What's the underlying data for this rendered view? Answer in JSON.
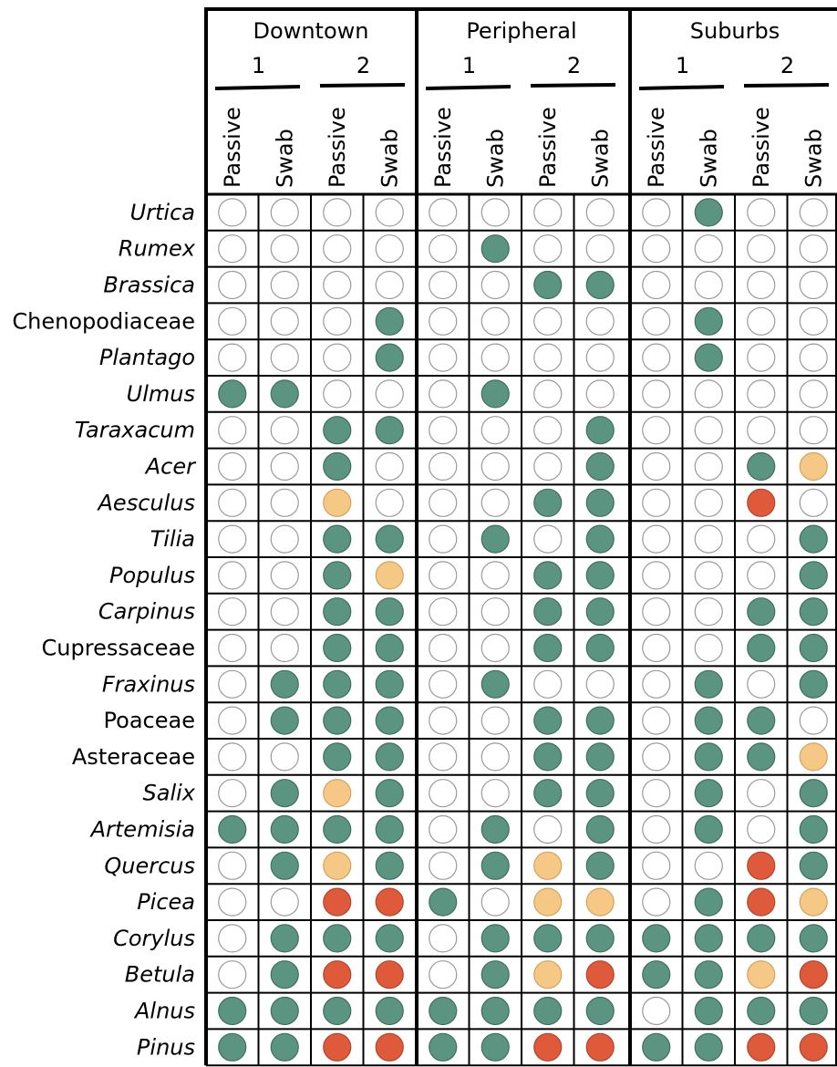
{
  "chart_data": {
    "type": "table",
    "sites": [
      {
        "label": "Downtown",
        "replicates": [
          "1",
          "2"
        ]
      },
      {
        "label": "Peripheral",
        "replicates": [
          "1",
          "2"
        ]
      },
      {
        "label": "Suburbs",
        "replicates": [
          "1",
          "2"
        ]
      }
    ],
    "methods": [
      "Passive",
      "Swab"
    ],
    "colors": {
      "empty": "#ffffff",
      "G": "#5b9481",
      "Y": "#f6c886",
      "R": "#de5a3b",
      "empty_stroke": "#9a9a9a",
      "G_stroke": "#3f6f5f",
      "Y_stroke": "#d4a25b",
      "R_stroke": "#b5432a"
    },
    "rows": [
      {
        "taxon": "Urtica",
        "italic": true,
        "cells": [
          "E",
          "E",
          "E",
          "E",
          "E",
          "E",
          "E",
          "E",
          "E",
          "G",
          "E",
          "E"
        ]
      },
      {
        "taxon": "Rumex",
        "italic": true,
        "cells": [
          "E",
          "E",
          "E",
          "E",
          "E",
          "G",
          "E",
          "E",
          "E",
          "E",
          "E",
          "E"
        ]
      },
      {
        "taxon": "Brassica",
        "italic": true,
        "cells": [
          "E",
          "E",
          "E",
          "E",
          "E",
          "E",
          "G",
          "G",
          "E",
          "E",
          "E",
          "E"
        ]
      },
      {
        "taxon": "Chenopodiaceae",
        "italic": false,
        "cells": [
          "E",
          "E",
          "E",
          "G",
          "E",
          "E",
          "E",
          "E",
          "E",
          "G",
          "E",
          "E"
        ]
      },
      {
        "taxon": "Plantago",
        "italic": true,
        "cells": [
          "E",
          "E",
          "E",
          "G",
          "E",
          "E",
          "E",
          "E",
          "E",
          "G",
          "E",
          "E"
        ]
      },
      {
        "taxon": "Ulmus",
        "italic": true,
        "cells": [
          "G",
          "G",
          "E",
          "E",
          "E",
          "G",
          "E",
          "E",
          "E",
          "E",
          "E",
          "E"
        ]
      },
      {
        "taxon": "Taraxacum",
        "italic": true,
        "cells": [
          "E",
          "E",
          "G",
          "G",
          "E",
          "E",
          "E",
          "G",
          "E",
          "E",
          "E",
          "E"
        ]
      },
      {
        "taxon": "Acer",
        "italic": true,
        "cells": [
          "E",
          "E",
          "G",
          "E",
          "E",
          "E",
          "E",
          "G",
          "E",
          "E",
          "G",
          "Y"
        ]
      },
      {
        "taxon": "Aesculus",
        "italic": true,
        "cells": [
          "E",
          "E",
          "Y",
          "E",
          "E",
          "E",
          "G",
          "G",
          "E",
          "E",
          "R",
          "E"
        ]
      },
      {
        "taxon": "Tilia",
        "italic": true,
        "cells": [
          "E",
          "E",
          "G",
          "G",
          "E",
          "G",
          "E",
          "G",
          "E",
          "E",
          "E",
          "G"
        ]
      },
      {
        "taxon": "Populus",
        "italic": true,
        "cells": [
          "E",
          "E",
          "G",
          "Y",
          "E",
          "E",
          "G",
          "G",
          "E",
          "E",
          "E",
          "G"
        ]
      },
      {
        "taxon": "Carpinus",
        "italic": true,
        "cells": [
          "E",
          "E",
          "G",
          "G",
          "E",
          "E",
          "G",
          "G",
          "E",
          "E",
          "G",
          "G"
        ]
      },
      {
        "taxon": "Cupressaceae",
        "italic": false,
        "cells": [
          "E",
          "E",
          "G",
          "G",
          "E",
          "E",
          "G",
          "G",
          "E",
          "E",
          "G",
          "G"
        ]
      },
      {
        "taxon": "Fraxinus",
        "italic": true,
        "cells": [
          "E",
          "G",
          "G",
          "G",
          "E",
          "G",
          "E",
          "E",
          "E",
          "G",
          "E",
          "G"
        ]
      },
      {
        "taxon": "Poaceae",
        "italic": false,
        "cells": [
          "E",
          "G",
          "G",
          "G",
          "E",
          "E",
          "G",
          "G",
          "E",
          "G",
          "G",
          "E"
        ]
      },
      {
        "taxon": "Asteraceae",
        "italic": false,
        "cells": [
          "E",
          "E",
          "G",
          "G",
          "E",
          "E",
          "G",
          "G",
          "E",
          "G",
          "G",
          "Y"
        ]
      },
      {
        "taxon": "Salix",
        "italic": true,
        "cells": [
          "E",
          "G",
          "Y",
          "G",
          "E",
          "E",
          "G",
          "G",
          "E",
          "G",
          "E",
          "G"
        ]
      },
      {
        "taxon": "Artemisia",
        "italic": true,
        "cells": [
          "G",
          "G",
          "G",
          "G",
          "E",
          "G",
          "E",
          "G",
          "E",
          "G",
          "E",
          "G"
        ]
      },
      {
        "taxon": "Quercus",
        "italic": true,
        "cells": [
          "E",
          "G",
          "Y",
          "G",
          "E",
          "G",
          "Y",
          "G",
          "E",
          "E",
          "R",
          "G"
        ]
      },
      {
        "taxon": "Picea",
        "italic": true,
        "cells": [
          "E",
          "E",
          "R",
          "R",
          "G",
          "E",
          "Y",
          "Y",
          "E",
          "G",
          "R",
          "Y"
        ]
      },
      {
        "taxon": "Corylus",
        "italic": true,
        "cells": [
          "E",
          "G",
          "G",
          "G",
          "E",
          "G",
          "G",
          "G",
          "G",
          "G",
          "G",
          "G"
        ]
      },
      {
        "taxon": "Betula",
        "italic": true,
        "cells": [
          "E",
          "G",
          "R",
          "R",
          "E",
          "G",
          "Y",
          "R",
          "G",
          "G",
          "Y",
          "R"
        ]
      },
      {
        "taxon": "Alnus",
        "italic": true,
        "cells": [
          "G",
          "G",
          "G",
          "G",
          "G",
          "G",
          "G",
          "G",
          "E",
          "G",
          "G",
          "G"
        ]
      },
      {
        "taxon": "Pinus",
        "italic": true,
        "cells": [
          "G",
          "G",
          "R",
          "R",
          "G",
          "G",
          "R",
          "R",
          "G",
          "G",
          "R",
          "R"
        ]
      }
    ]
  }
}
